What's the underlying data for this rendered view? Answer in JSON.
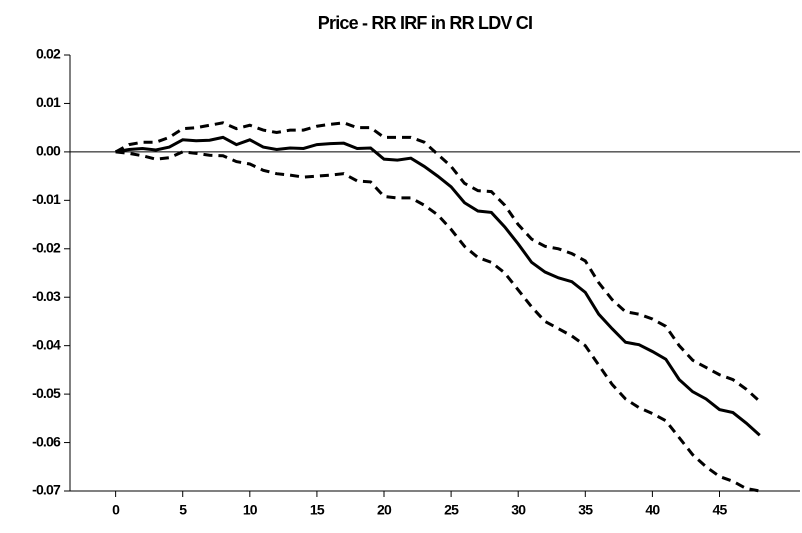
{
  "chart_data": {
    "type": "line",
    "title": "Price - RR IRF in RR LDV CI",
    "x": [
      0,
      1,
      2,
      3,
      4,
      5,
      6,
      7,
      8,
      9,
      10,
      11,
      12,
      13,
      14,
      15,
      16,
      17,
      18,
      19,
      20,
      21,
      22,
      23,
      24,
      25,
      26,
      27,
      28,
      29,
      30,
      31,
      32,
      33,
      34,
      35,
      36,
      37,
      38,
      39,
      40,
      41,
      42,
      43,
      44,
      45,
      46,
      47,
      48
    ],
    "series": [
      {
        "color": "#000000",
        "dash": false,
        "values": [
          0,
          0.0005,
          0.0007,
          0.0004,
          0.001,
          0.0025,
          0.0023,
          0.0024,
          0.003,
          0.0015,
          0.0025,
          0.001,
          0.0005,
          0.0008,
          0.0007,
          0.0015,
          0.0017,
          0.0018,
          0.0007,
          0.0008,
          -0.0015,
          -0.0017,
          -0.0013,
          -0.003,
          -0.005,
          -0.0072,
          -0.0105,
          -0.0122,
          -0.0125,
          -0.0155,
          -0.019,
          -0.0228,
          -0.0248,
          -0.026,
          -0.0268,
          -0.029,
          -0.0335,
          -0.0365,
          -0.0393,
          -0.0398,
          -0.0412,
          -0.0428,
          -0.047,
          -0.0495,
          -0.051,
          -0.0532,
          -0.0538,
          -0.056,
          -0.0585
        ]
      },
      {
        "color": "#000000",
        "dash": true,
        "values": [
          0,
          0.0015,
          0.002,
          0.002,
          0.003,
          0.0048,
          0.005,
          0.0055,
          0.006,
          0.0048,
          0.0055,
          0.0045,
          0.004,
          0.0045,
          0.0045,
          0.0053,
          0.0057,
          0.006,
          0.005,
          0.005,
          0.003,
          0.003,
          0.003,
          0.002,
          -0.0005,
          -0.003,
          -0.0065,
          -0.008,
          -0.0082,
          -0.011,
          -0.015,
          -0.018,
          -0.0195,
          -0.02,
          -0.021,
          -0.0225,
          -0.027,
          -0.0305,
          -0.033,
          -0.0335,
          -0.0345,
          -0.036,
          -0.04,
          -0.043,
          -0.0445,
          -0.046,
          -0.047,
          -0.049,
          -0.0515
        ]
      },
      {
        "color": "#000000",
        "dash": true,
        "values": [
          0,
          -0.0003,
          -0.0008,
          -0.0015,
          -0.0012,
          0,
          -0.0003,
          -0.0007,
          -0.0008,
          -0.002,
          -0.0025,
          -0.0038,
          -0.0045,
          -0.0048,
          -0.0052,
          -0.005,
          -0.0048,
          -0.0045,
          -0.006,
          -0.0062,
          -0.0092,
          -0.0095,
          -0.0095,
          -0.011,
          -0.013,
          -0.016,
          -0.0195,
          -0.0218,
          -0.0228,
          -0.025,
          -0.0285,
          -0.032,
          -0.035,
          -0.0365,
          -0.038,
          -0.04,
          -0.044,
          -0.048,
          -0.051,
          -0.0528,
          -0.054,
          -0.0555,
          -0.059,
          -0.0625,
          -0.065,
          -0.067,
          -0.068,
          -0.0695,
          -0.07
        ]
      }
    ],
    "xlim": [
      -3.4,
      51
    ],
    "xticks": [
      0,
      5,
      10,
      15,
      20,
      25,
      30,
      35,
      40,
      45
    ],
    "ylim": [
      -0.07,
      0.02
    ],
    "yticks": [
      0.02,
      0.01,
      {
        "value": 0,
        "label": "0.00"
      },
      -0.01,
      -0.02,
      -0.03,
      -0.04,
      -0.05,
      -0.06,
      -0.07
    ]
  }
}
